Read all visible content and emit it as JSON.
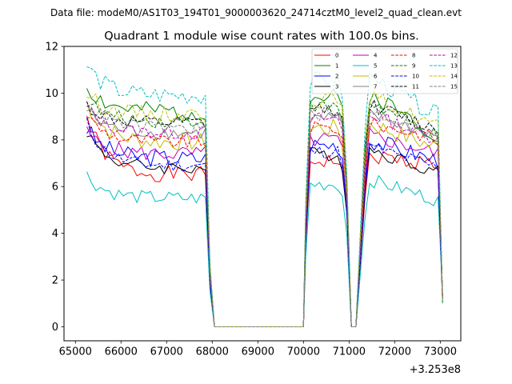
{
  "figure": {
    "suptitle": "Data file: modeM0/AS1T03_194T01_9000003620_24714cztM0_level2_quad_clean.evt"
  },
  "chart_data": {
    "type": "line",
    "title": "Quadrant 1 module wise count rates with 100.0s bins.",
    "xlabel": "",
    "ylabel": "",
    "offset_label": "+3.253e8",
    "xlim": [
      64750,
      73450
    ],
    "ylim": [
      -0.6,
      12
    ],
    "xticks": [
      65000,
      66000,
      67000,
      68000,
      69000,
      70000,
      71000,
      72000,
      73000
    ],
    "xtick_labels": [
      "65000",
      "66000",
      "67000",
      "68000",
      "69000",
      "70000",
      "71000",
      "72000",
      "73000"
    ],
    "yticks": [
      0,
      2,
      4,
      6,
      8,
      10,
      12
    ],
    "ytick_labels": [
      "0",
      "2",
      "4",
      "6",
      "8",
      "10",
      "12"
    ],
    "grid": false,
    "legend_position": "top-right",
    "legend_columns": 4,
    "segments": [
      {
        "t0": 65250,
        "t1": 67850
      },
      {
        "t0": 70050,
        "t1": 70950
      },
      {
        "t0": 71450,
        "t1": 73050
      }
    ],
    "gap_points": [
      67950,
      68050,
      70000,
      71050,
      71150,
      71350
    ],
    "series": [
      {
        "name": "0",
        "color": "#ff0000",
        "dash": "solid",
        "level": 6.5,
        "start": 9.0,
        "dip": 6.9,
        "amp": 0.35,
        "seed": 1
      },
      {
        "name": "1",
        "color": "#008000",
        "dash": "solid",
        "level": 9.2,
        "start": 10.3,
        "dip": 8.0,
        "amp": 0.4,
        "seed": 2
      },
      {
        "name": "2",
        "color": "#0000ff",
        "dash": "solid",
        "level": 7.2,
        "start": 8.5,
        "dip": 7.0,
        "amp": 0.4,
        "seed": 3
      },
      {
        "name": "3",
        "color": "#000000",
        "dash": "solid",
        "level": 6.8,
        "start": 8.4,
        "dip": 6.5,
        "amp": 0.3,
        "seed": 4
      },
      {
        "name": "4",
        "color": "#bf00bf",
        "dash": "solid",
        "level": 7.4,
        "start": 8.3,
        "dip": 7.3,
        "amp": 0.35,
        "seed": 5
      },
      {
        "name": "5",
        "color": "#00bfbf",
        "dash": "solid",
        "level": 5.5,
        "start": 6.5,
        "dip": 5.3,
        "amp": 0.3,
        "seed": 6
      },
      {
        "name": "6",
        "color": "#bfbf00",
        "dash": "solid",
        "level": 7.9,
        "start": 9.6,
        "dip": 7.5,
        "amp": 0.4,
        "seed": 7
      },
      {
        "name": "7",
        "color": "#808080",
        "dash": "solid",
        "level": 8.3,
        "start": 9.3,
        "dip": 8.0,
        "amp": 0.3,
        "seed": 8
      },
      {
        "name": "8",
        "color": "#ff0000",
        "dash": "dashed",
        "level": 7.9,
        "start": 9.1,
        "dip": 8.0,
        "amp": 0.3,
        "seed": 9
      },
      {
        "name": "9",
        "color": "#008000",
        "dash": "dashed",
        "level": 8.8,
        "start": 9.7,
        "dip": 7.9,
        "amp": 0.3,
        "seed": 10
      },
      {
        "name": "10",
        "color": "#0000ff",
        "dash": "dashed",
        "level": 6.9,
        "start": 8.7,
        "dip": 6.7,
        "amp": 0.3,
        "seed": 11
      },
      {
        "name": "11",
        "color": "#000000",
        "dash": "dashed",
        "level": 8.7,
        "start": 9.5,
        "dip": 8.3,
        "amp": 0.3,
        "seed": 12
      },
      {
        "name": "12",
        "color": "#bf00bf",
        "dash": "dashed",
        "level": 8.3,
        "start": 9.4,
        "dip": 7.9,
        "amp": 0.3,
        "seed": 13
      },
      {
        "name": "13",
        "color": "#00bfbf",
        "dash": "dashed",
        "level": 9.9,
        "start": 11.2,
        "dip": 8.8,
        "amp": 0.4,
        "seed": 14
      },
      {
        "name": "14",
        "color": "#bfbf00",
        "dash": "dashed",
        "level": 9.1,
        "start": 10.0,
        "dip": 8.4,
        "amp": 0.35,
        "seed": 15
      },
      {
        "name": "15",
        "color": "#808080",
        "dash": "dashed",
        "level": 8.5,
        "start": 9.7,
        "dip": 8.0,
        "amp": 0.3,
        "seed": 16
      }
    ]
  }
}
